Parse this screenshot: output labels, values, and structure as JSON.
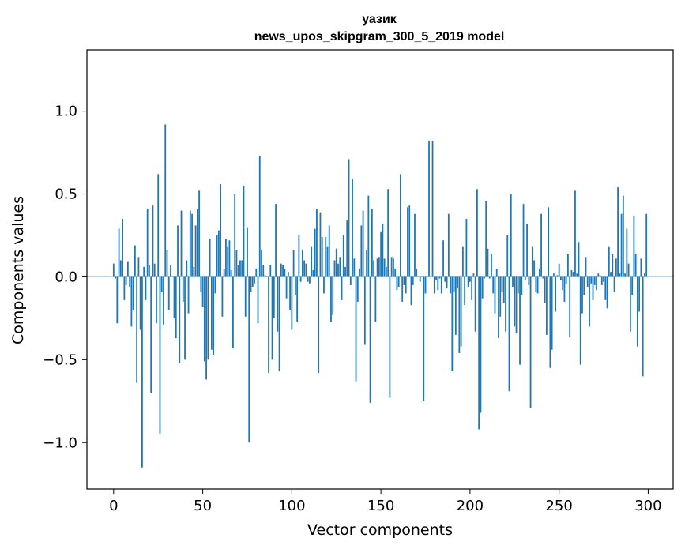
{
  "chart_data": {
    "type": "bar",
    "title": "уазик",
    "subtitle": "news_upos_skipgram_300_5_2019 model",
    "xlabel": "Vector components",
    "ylabel": "Components values",
    "xlim": [
      -15,
      314
    ],
    "ylim": [
      -1.28,
      1.37
    ],
    "xticks": [
      0,
      50,
      100,
      150,
      200,
      250,
      300
    ],
    "yticks": [
      -1.0,
      -0.5,
      0.0,
      0.5,
      1.0
    ],
    "ytick_labels": [
      "−1.0",
      "−0.5",
      "0.0",
      "0.5",
      "1.0"
    ],
    "bar_color": "#1f77b4",
    "grid": false,
    "values": [
      0.08,
      -0.01,
      -0.28,
      0.29,
      0.1,
      0.35,
      -0.14,
      -0.05,
      0.09,
      -0.06,
      -0.3,
      -0.2,
      0.19,
      -0.64,
      0.12,
      -0.32,
      -1.15,
      0.06,
      -0.14,
      0.41,
      0.07,
      -0.7,
      0.43,
      0.08,
      -0.28,
      0.62,
      -0.95,
      -0.09,
      -0.29,
      0.92,
      0.16,
      -0.2,
      0.07,
      0.0,
      -0.25,
      -0.37,
      0.31,
      -0.52,
      0.4,
      -0.15,
      -0.5,
      0.1,
      -0.22,
      0.4,
      0.38,
      0.06,
      0.31,
      0.41,
      0.52,
      -0.09,
      -0.18,
      -0.51,
      -0.62,
      -0.5,
      0.23,
      -0.44,
      -0.47,
      -0.1,
      0.25,
      0.28,
      0.56,
      -0.24,
      0.05,
      0.23,
      0.18,
      0.22,
      0.04,
      -0.43,
      0.5,
      0.16,
      0.07,
      0.1,
      0.1,
      0.55,
      -0.24,
      0.3,
      -1.0,
      -0.09,
      -0.06,
      -0.04,
      0.05,
      -0.28,
      0.73,
      0.16,
      0.07,
      0.01,
      0.0,
      -0.58,
      0.07,
      -0.5,
      -0.25,
      0.44,
      -0.33,
      -0.57,
      0.08,
      0.07,
      0.05,
      -0.13,
      0.03,
      -0.2,
      -0.32,
      0.16,
      -0.11,
      -0.27,
      0.25,
      -0.03,
      0.16,
      0.1,
      0.08,
      -0.03,
      -0.04,
      0.18,
      0.04,
      0.29,
      0.41,
      -0.58,
      0.39,
      0.24,
      -0.1,
      0.24,
      0.18,
      0.31,
      -0.27,
      -0.23,
      0.1,
      0.17,
      0.08,
      0.12,
      -0.14,
      0.25,
      0.06,
      0.34,
      0.71,
      -0.05,
      0.59,
      0.11,
      -0.63,
      -0.15,
      0.05,
      0.31,
      0.4,
      -0.41,
      0.16,
      0.49,
      -0.76,
      0.41,
      0.1,
      -0.27,
      0.11,
      0.12,
      0.27,
      0.32,
      0.11,
      0.06,
      0.53,
      -0.73,
      0.12,
      0.11,
      0.05,
      -0.08,
      -0.06,
      0.62,
      -0.15,
      -0.05,
      -0.1,
      0.42,
      0.43,
      -0.17,
      -0.05,
      0.38,
      0.05,
      0.0,
      -0.03,
      0.0,
      -0.75,
      -0.1,
      0.0,
      0.82,
      0.0,
      0.82,
      -0.1,
      -0.02,
      -0.08,
      -0.01,
      -0.1,
      0.22,
      -0.03,
      -0.07,
      0.38,
      -0.1,
      -0.57,
      -0.09,
      -0.35,
      -0.07,
      -0.46,
      -0.42,
      0.18,
      -0.17,
      0.35,
      -0.06,
      -0.03,
      -0.14,
      0.02,
      -0.33,
      0.53,
      -0.92,
      -0.82,
      -0.13,
      -0.01,
      0.46,
      0.17,
      -0.01,
      0.14,
      -0.1,
      -0.22,
      0.05,
      -0.37,
      -0.24,
      -0.09,
      -0.16,
      -0.33,
      0.25,
      -0.69,
      0.5,
      -0.06,
      -0.3,
      -0.34,
      -0.1,
      -0.53,
      -0.11,
      0.44,
      -0.02,
      0.32,
      -0.05,
      -0.79,
      0.18,
      0.1,
      -0.09,
      -0.1,
      0.05,
      0.38,
      -0.01,
      -0.16,
      -0.35,
      0.42,
      -0.55,
      -0.44,
      0.02,
      -0.21,
      0.01,
      0.08,
      -0.02,
      -0.08,
      -0.15,
      -0.04,
      0.14,
      -0.36,
      0.04,
      0.03,
      0.52,
      0.02,
      0.21,
      -0.53,
      -0.22,
      -0.11,
      0.12,
      -0.06,
      -0.3,
      -0.04,
      -0.14,
      -0.05,
      -0.08,
      0.02,
      0.01,
      -0.05,
      -0.03,
      -0.14,
      -0.19,
      0.18,
      0.03,
      0.14,
      -0.09,
      0.11,
      0.54,
      0.02,
      0.38,
      0.49,
      0.02,
      0.29,
      0.08,
      -0.33,
      -0.11,
      0.37,
      0.14,
      -0.42,
      -0.21,
      0.11,
      -0.6,
      0.02,
      0.38
    ]
  }
}
